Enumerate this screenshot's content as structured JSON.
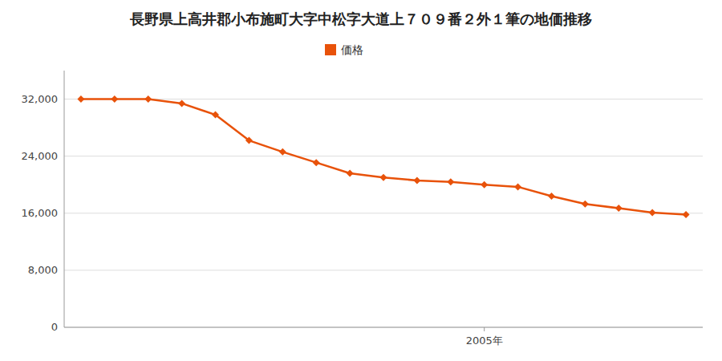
{
  "chart_data": {
    "type": "line",
    "title": "長野県上高井郡小布施町大字中松字大道上７０９番２外１筆の地価推移",
    "x": [
      1993,
      1994,
      1995,
      1996,
      1997,
      1998,
      1999,
      2000,
      2001,
      2002,
      2003,
      2004,
      2005,
      2006,
      2007,
      2008,
      2009,
      2010,
      2011
    ],
    "series": [
      {
        "name": "価格",
        "color": "#E8520A",
        "marker": "diamond",
        "values": [
          32000,
          32000,
          32000,
          31400,
          29800,
          26200,
          24600,
          23100,
          21600,
          21000,
          20600,
          20400,
          20000,
          19700,
          18400,
          17300,
          16700,
          16100,
          15800
        ]
      }
    ],
    "xlim": [
      1992.5,
      2011.5
    ],
    "xticks": [
      {
        "value": 2005,
        "label": "2005年"
      }
    ],
    "ylim": [
      0,
      36000
    ],
    "yticks": [
      0,
      {
        "value": 8000,
        "label": "8,000"
      },
      {
        "value": 16000,
        "label": "16,000"
      },
      {
        "value": 24000,
        "label": "24,000"
      },
      {
        "value": 32000,
        "label": "32,000"
      }
    ],
    "grid": true,
    "legend": "top"
  }
}
